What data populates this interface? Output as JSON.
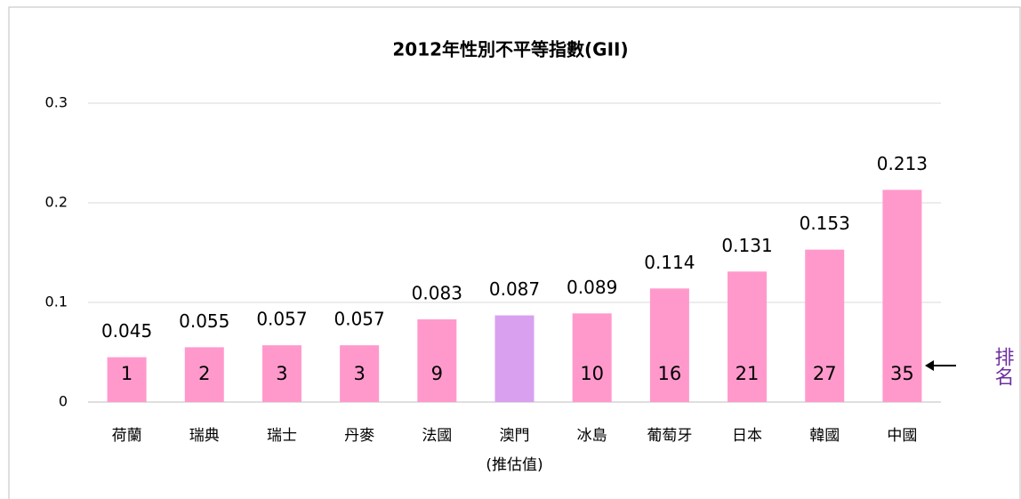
{
  "chart_data": {
    "type": "bar",
    "title": "2012年性別不平等指數(GII)",
    "categories": [
      "荷蘭",
      "瑞典",
      "瑞士",
      "丹麥",
      "法國",
      "澳門",
      "冰島",
      "葡萄牙",
      "日本",
      "韓國",
      "中國"
    ],
    "category_note": "(推估值)",
    "values": [
      0.045,
      0.055,
      0.057,
      0.057,
      0.083,
      0.087,
      0.089,
      0.114,
      0.131,
      0.153,
      0.213
    ],
    "ranks": [
      1,
      2,
      3,
      3,
      9,
      null,
      10,
      16,
      21,
      27,
      35
    ],
    "rank_label": "排名",
    "colors": [
      "#ff99cc",
      "#ff99cc",
      "#ff99cc",
      "#ff99cc",
      "#ff99cc",
      "#d9a0f0",
      "#ff99cc",
      "#ff99cc",
      "#ff99cc",
      "#ff99cc",
      "#ff99cc"
    ],
    "ylim": [
      0,
      0.3
    ],
    "yticks": [
      0,
      0.1,
      0.2,
      0.3
    ],
    "grid": true
  }
}
